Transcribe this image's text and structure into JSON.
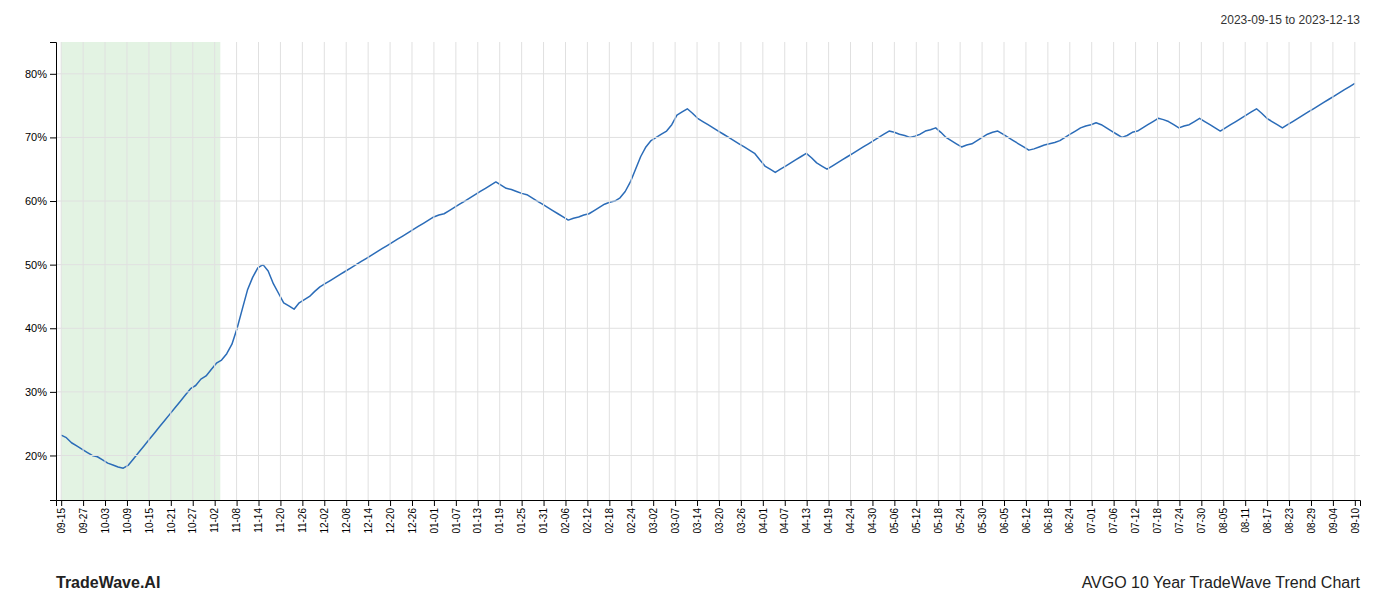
{
  "chart_data": {
    "type": "line",
    "title": "AVGO 10 Year TradeWave Trend Chart",
    "subtitle": "2023-09-15 to 2023-12-13",
    "annotations": [
      "TradeWave.AI"
    ],
    "color": "#2b6cb8",
    "values": [
      23.2,
      22.8,
      22.0,
      21.5,
      21.0,
      20.5,
      20.0,
      19.8,
      19.3,
      18.8,
      18.5,
      18.2,
      18.0,
      18.5,
      19.5,
      20.5,
      21.5,
      22.5,
      23.5,
      24.5,
      25.5,
      26.5,
      27.5,
      28.5,
      29.5,
      30.5,
      31.0,
      32.0,
      32.5,
      33.5,
      34.5,
      35.0,
      36.0,
      37.5,
      40.0,
      43.0,
      46.0,
      48.0,
      49.5,
      50.0,
      49.0,
      47.0,
      45.5,
      44.0,
      43.5,
      43.0,
      44.0,
      44.5,
      45.0,
      45.8,
      46.5,
      47.0,
      47.5,
      48.0,
      48.5,
      49.0,
      49.5,
      50.0,
      50.5,
      51.0,
      51.5,
      52.0,
      52.5,
      53.0,
      53.5,
      54.0,
      54.5,
      55.0,
      55.5,
      56.0,
      56.5,
      57.0,
      57.5,
      57.8,
      58.0,
      58.5,
      59.0,
      59.5,
      60.0,
      60.5,
      61.0,
      61.5,
      62.0,
      62.5,
      63.0,
      62.5,
      62.0,
      61.8,
      61.5,
      61.2,
      61.0,
      60.5,
      60.0,
      59.5,
      59.0,
      58.5,
      58.0,
      57.5,
      57.0,
      57.3,
      57.5,
      57.8,
      58.0,
      58.5,
      59.0,
      59.5,
      59.8,
      60.0,
      60.5,
      61.5,
      63.0,
      65.0,
      67.0,
      68.5,
      69.5,
      70.0,
      70.5,
      71.0,
      72.0,
      73.5,
      74.0,
      74.5,
      73.8,
      73.0,
      72.5,
      72.0,
      71.5,
      71.0,
      70.5,
      70.0,
      69.5,
      69.0,
      68.5,
      68.0,
      67.5,
      66.5,
      65.5,
      65.0,
      64.5,
      65.0,
      65.5,
      66.0,
      66.5,
      67.0,
      67.5,
      66.8,
      66.0,
      65.5,
      65.0,
      65.5,
      66.0,
      66.5,
      67.0,
      67.5,
      68.0,
      68.5,
      69.0,
      69.5,
      70.0,
      70.5,
      71.0,
      70.8,
      70.5,
      70.3,
      70.0,
      70.2,
      70.5,
      71.0,
      71.2,
      71.5,
      70.8,
      70.0,
      69.5,
      69.0,
      68.5,
      68.8,
      69.0,
      69.5,
      70.0,
      70.5,
      70.8,
      71.0,
      70.5,
      70.0,
      69.5,
      69.0,
      68.5,
      68.0,
      68.2,
      68.5,
      68.8,
      69.0,
      69.2,
      69.5,
      70.0,
      70.5,
      71.0,
      71.5,
      71.8,
      72.0,
      72.3,
      72.0,
      71.5,
      71.0,
      70.5,
      70.0,
      70.3,
      70.8,
      71.0,
      71.5,
      72.0,
      72.5,
      73.0,
      72.8,
      72.5,
      72.0,
      71.5,
      71.8,
      72.0,
      72.5,
      73.0,
      72.5,
      72.0,
      71.5,
      71.0,
      71.5,
      72.0,
      72.5,
      73.0,
      73.5,
      74.0,
      74.5,
      73.8,
      73.0,
      72.5,
      72.0,
      71.5,
      72.0,
      72.5,
      73.0,
      73.5,
      74.0,
      74.5,
      75.0,
      75.5,
      76.0,
      76.5,
      77.0,
      77.5,
      78.0,
      78.5
    ],
    "xlim": [
      -1,
      251
    ],
    "xticks": [
      {
        "value": 0,
        "label": "09-15"
      },
      {
        "value": 4.2372881356,
        "label": "09-27"
      },
      {
        "value": 8.4745762712,
        "label": "10-03"
      },
      {
        "value": 12.7118644068,
        "label": "10-09"
      },
      {
        "value": 16.9491525424,
        "label": "10-15"
      },
      {
        "value": 21.186440678,
        "label": "10-21"
      },
      {
        "value": 25.4237288136,
        "label": "10-27"
      },
      {
        "value": 29.6610169492,
        "label": "11-02"
      },
      {
        "value": 33.8983050847,
        "label": "11-08"
      },
      {
        "value": 38.1355932203,
        "label": "11-14"
      },
      {
        "value": 42.3728813559,
        "label": "11-20"
      },
      {
        "value": 46.6101694915,
        "label": "11-26"
      },
      {
        "value": 50.8474576271,
        "label": "12-02"
      },
      {
        "value": 55.0847457627,
        "label": "12-08"
      },
      {
        "value": 59.3220338983,
        "label": "12-14"
      },
      {
        "value": 63.5593220339,
        "label": "12-20"
      },
      {
        "value": 67.7966101695,
        "label": "12-26"
      },
      {
        "value": 72.0338983051,
        "label": "01-01"
      },
      {
        "value": 76.2711864407,
        "label": "01-07"
      },
      {
        "value": 80.5084745763,
        "label": "01-13"
      },
      {
        "value": 84.7457627119,
        "label": "01-19"
      },
      {
        "value": 88.9830508475,
        "label": "01-25"
      },
      {
        "value": 93.2203389831,
        "label": "01-31"
      },
      {
        "value": 97.4576271186,
        "label": "02-06"
      },
      {
        "value": 101.6949152542,
        "label": "02-12"
      },
      {
        "value": 105.9322033898,
        "label": "02-18"
      },
      {
        "value": 110.1694915254,
        "label": "02-24"
      },
      {
        "value": 114.406779661,
        "label": "03-02"
      },
      {
        "value": 118.6440677966,
        "label": "03-07"
      },
      {
        "value": 122.8813559322,
        "label": "03-14"
      },
      {
        "value": 127.1186440678,
        "label": "03-20"
      },
      {
        "value": 131.3559322034,
        "label": "03-26"
      },
      {
        "value": 135.593220339,
        "label": "04-01"
      },
      {
        "value": 139.8305084746,
        "label": "04-07"
      },
      {
        "value": 144.0677966102,
        "label": "04-13"
      },
      {
        "value": 148.3050847458,
        "label": "04-19"
      },
      {
        "value": 152.5423728814,
        "label": "04-24"
      },
      {
        "value": 156.7796610169,
        "label": "04-30"
      },
      {
        "value": 161.0169491525,
        "label": "05-06"
      },
      {
        "value": 165.2542372881,
        "label": "05-12"
      },
      {
        "value": 169.4915254237,
        "label": "05-18"
      },
      {
        "value": 173.7288135593,
        "label": "05-24"
      },
      {
        "value": 177.9661016949,
        "label": "05-30"
      },
      {
        "value": 182.2033898305,
        "label": "06-05"
      },
      {
        "value": 186.4406779661,
        "label": "06-12"
      },
      {
        "value": 190.6779661017,
        "label": "06-18"
      },
      {
        "value": 194.9152542373,
        "label": "06-24"
      },
      {
        "value": 199.1525423729,
        "label": "07-01"
      },
      {
        "value": 203.3898305085,
        "label": "07-06"
      },
      {
        "value": 207.6271186441,
        "label": "07-12"
      },
      {
        "value": 211.8644067797,
        "label": "07-18"
      },
      {
        "value": 216.1016949153,
        "label": "07-24"
      },
      {
        "value": 220.3389830508,
        "label": "07-30"
      },
      {
        "value": 224.5762711864,
        "label": "08-05"
      },
      {
        "value": 228.813559322,
        "label": "08-11"
      },
      {
        "value": 233.0508474576,
        "label": "08-17"
      },
      {
        "value": 237.2881355932,
        "label": "08-23"
      },
      {
        "value": 241.5254237288,
        "label": "08-29"
      },
      {
        "value": 245.7627118644,
        "label": "09-04"
      },
      {
        "value": 250,
        "label": "09-10"
      }
    ],
    "ylim": [
      13,
      85
    ],
    "yticks": [
      {
        "value": 20,
        "label": "20%"
      },
      {
        "value": 30,
        "label": "30%"
      },
      {
        "value": 40,
        "label": "40%"
      },
      {
        "value": 50,
        "label": "50%"
      },
      {
        "value": 60,
        "label": "60%"
      },
      {
        "value": 70,
        "label": "70%"
      },
      {
        "value": 80,
        "label": "80%"
      }
    ],
    "grid": true,
    "shade_range": [
      0,
      30.75
    ],
    "shade_color": "#d4ecd4"
  }
}
